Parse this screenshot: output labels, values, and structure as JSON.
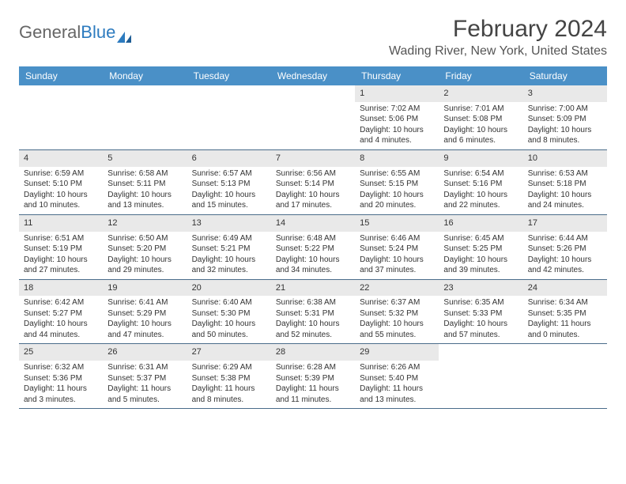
{
  "brand": {
    "part1": "General",
    "part2": "Blue"
  },
  "title": "February 2024",
  "location": "Wading River, New York, United States",
  "day_names": [
    "Sunday",
    "Monday",
    "Tuesday",
    "Wednesday",
    "Thursday",
    "Friday",
    "Saturday"
  ],
  "colors": {
    "header_bg": "#4a90c7",
    "header_text": "#ffffff",
    "daynum_bg": "#e9e9e9",
    "week_border": "#4a6c8a",
    "brand_blue": "#2d7bbf",
    "text": "#333333",
    "background": "#ffffff"
  },
  "typography": {
    "title_fontsize": 30,
    "location_fontsize": 16,
    "dayheader_fontsize": 12,
    "cell_fontsize": 10,
    "daynum_fontsize": 11,
    "logo_fontsize": 22
  },
  "layout": {
    "columns": 7,
    "first_weekday_index": 4,
    "rows": 5
  },
  "days": [
    {
      "n": 1,
      "sunrise": "7:02 AM",
      "sunset": "5:06 PM",
      "daylight": "10 hours and 4 minutes."
    },
    {
      "n": 2,
      "sunrise": "7:01 AM",
      "sunset": "5:08 PM",
      "daylight": "10 hours and 6 minutes."
    },
    {
      "n": 3,
      "sunrise": "7:00 AM",
      "sunset": "5:09 PM",
      "daylight": "10 hours and 8 minutes."
    },
    {
      "n": 4,
      "sunrise": "6:59 AM",
      "sunset": "5:10 PM",
      "daylight": "10 hours and 10 minutes."
    },
    {
      "n": 5,
      "sunrise": "6:58 AM",
      "sunset": "5:11 PM",
      "daylight": "10 hours and 13 minutes."
    },
    {
      "n": 6,
      "sunrise": "6:57 AM",
      "sunset": "5:13 PM",
      "daylight": "10 hours and 15 minutes."
    },
    {
      "n": 7,
      "sunrise": "6:56 AM",
      "sunset": "5:14 PM",
      "daylight": "10 hours and 17 minutes."
    },
    {
      "n": 8,
      "sunrise": "6:55 AM",
      "sunset": "5:15 PM",
      "daylight": "10 hours and 20 minutes."
    },
    {
      "n": 9,
      "sunrise": "6:54 AM",
      "sunset": "5:16 PM",
      "daylight": "10 hours and 22 minutes."
    },
    {
      "n": 10,
      "sunrise": "6:53 AM",
      "sunset": "5:18 PM",
      "daylight": "10 hours and 24 minutes."
    },
    {
      "n": 11,
      "sunrise": "6:51 AM",
      "sunset": "5:19 PM",
      "daylight": "10 hours and 27 minutes."
    },
    {
      "n": 12,
      "sunrise": "6:50 AM",
      "sunset": "5:20 PM",
      "daylight": "10 hours and 29 minutes."
    },
    {
      "n": 13,
      "sunrise": "6:49 AM",
      "sunset": "5:21 PM",
      "daylight": "10 hours and 32 minutes."
    },
    {
      "n": 14,
      "sunrise": "6:48 AM",
      "sunset": "5:22 PM",
      "daylight": "10 hours and 34 minutes."
    },
    {
      "n": 15,
      "sunrise": "6:46 AM",
      "sunset": "5:24 PM",
      "daylight": "10 hours and 37 minutes."
    },
    {
      "n": 16,
      "sunrise": "6:45 AM",
      "sunset": "5:25 PM",
      "daylight": "10 hours and 39 minutes."
    },
    {
      "n": 17,
      "sunrise": "6:44 AM",
      "sunset": "5:26 PM",
      "daylight": "10 hours and 42 minutes."
    },
    {
      "n": 18,
      "sunrise": "6:42 AM",
      "sunset": "5:27 PM",
      "daylight": "10 hours and 44 minutes."
    },
    {
      "n": 19,
      "sunrise": "6:41 AM",
      "sunset": "5:29 PM",
      "daylight": "10 hours and 47 minutes."
    },
    {
      "n": 20,
      "sunrise": "6:40 AM",
      "sunset": "5:30 PM",
      "daylight": "10 hours and 50 minutes."
    },
    {
      "n": 21,
      "sunrise": "6:38 AM",
      "sunset": "5:31 PM",
      "daylight": "10 hours and 52 minutes."
    },
    {
      "n": 22,
      "sunrise": "6:37 AM",
      "sunset": "5:32 PM",
      "daylight": "10 hours and 55 minutes."
    },
    {
      "n": 23,
      "sunrise": "6:35 AM",
      "sunset": "5:33 PM",
      "daylight": "10 hours and 57 minutes."
    },
    {
      "n": 24,
      "sunrise": "6:34 AM",
      "sunset": "5:35 PM",
      "daylight": "11 hours and 0 minutes."
    },
    {
      "n": 25,
      "sunrise": "6:32 AM",
      "sunset": "5:36 PM",
      "daylight": "11 hours and 3 minutes."
    },
    {
      "n": 26,
      "sunrise": "6:31 AM",
      "sunset": "5:37 PM",
      "daylight": "11 hours and 5 minutes."
    },
    {
      "n": 27,
      "sunrise": "6:29 AM",
      "sunset": "5:38 PM",
      "daylight": "11 hours and 8 minutes."
    },
    {
      "n": 28,
      "sunrise": "6:28 AM",
      "sunset": "5:39 PM",
      "daylight": "11 hours and 11 minutes."
    },
    {
      "n": 29,
      "sunrise": "6:26 AM",
      "sunset": "5:40 PM",
      "daylight": "11 hours and 13 minutes."
    }
  ],
  "labels": {
    "sunrise_prefix": "Sunrise: ",
    "sunset_prefix": "Sunset: ",
    "daylight_prefix": "Daylight: "
  }
}
